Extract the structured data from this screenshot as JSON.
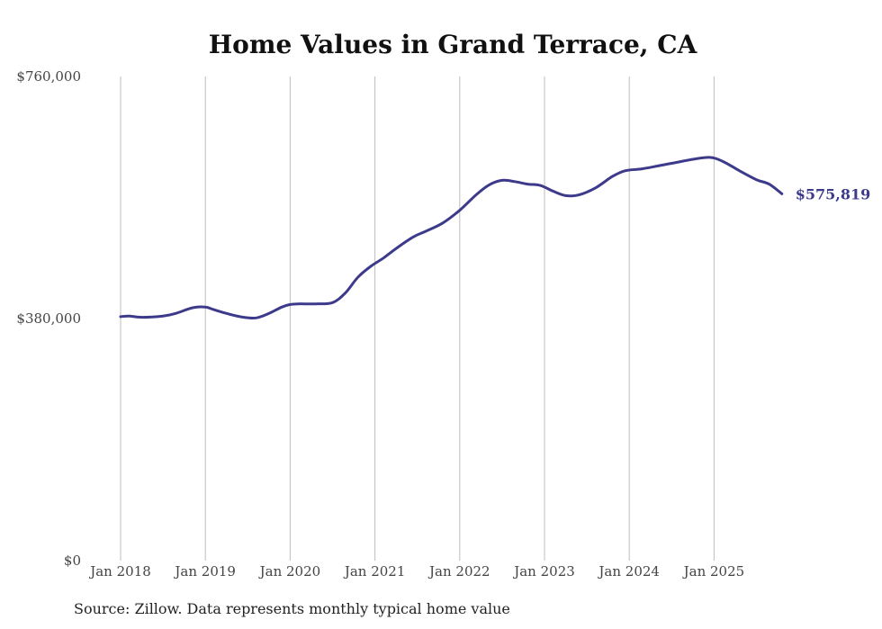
{
  "chart_data": {
    "type": "line",
    "title": "Home Values in Grand Terrace, CA",
    "xlabel": "",
    "ylabel": "",
    "ylim": [
      0,
      760000
    ],
    "yticks": [
      {
        "value": 0,
        "label": "$0"
      },
      {
        "value": 380000,
        "label": "$380,000"
      },
      {
        "value": 760000,
        "label": "$760,000"
      }
    ],
    "xticks": [
      "Jan 2018",
      "Jan 2019",
      "Jan 2020",
      "Jan 2021",
      "Jan 2022",
      "Jan 2023",
      "Jan 2024",
      "Jan 2025"
    ],
    "xlim": [
      2018.0,
      2025.9
    ],
    "grid": "vertical",
    "series": [
      {
        "name": "Typical home value",
        "color": "#3d3a8c",
        "x": [
          2018.0,
          2018.1,
          2018.25,
          2018.5,
          2018.65,
          2018.85,
          2019.0,
          2019.1,
          2019.25,
          2019.45,
          2019.6,
          2019.75,
          2019.9,
          2020.0,
          2020.1,
          2020.3,
          2020.5,
          2020.65,
          2020.8,
          2020.95,
          2021.1,
          2021.25,
          2021.45,
          2021.6,
          2021.8,
          2022.0,
          2022.2,
          2022.35,
          2022.5,
          2022.65,
          2022.8,
          2022.95,
          2023.1,
          2023.25,
          2023.4,
          2023.6,
          2023.8,
          2023.95,
          2024.15,
          2024.35,
          2024.55,
          2024.75,
          2024.95,
          2025.1,
          2025.3,
          2025.5,
          2025.65,
          2025.8
        ],
        "y": [
          383000,
          384000,
          382000,
          384000,
          388000,
          397000,
          398000,
          394000,
          388000,
          382000,
          381000,
          388000,
          398000,
          402000,
          403000,
          403000,
          405000,
          420000,
          445000,
          462000,
          475000,
          490000,
          508000,
          517000,
          530000,
          550000,
          575000,
          590000,
          597000,
          595000,
          591000,
          589000,
          580000,
          573000,
          574000,
          585000,
          603000,
          612000,
          615000,
          620000,
          625000,
          630000,
          633000,
          627000,
          612000,
          598000,
          591000,
          575819
        ]
      }
    ],
    "end_label": "$575,819",
    "source": "Source: Zillow. Data represents monthly typical home value"
  }
}
